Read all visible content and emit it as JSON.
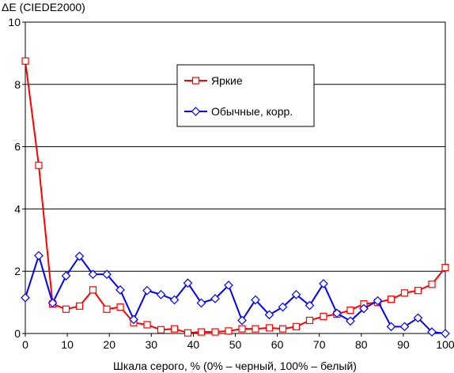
{
  "chart_data": {
    "type": "line",
    "ylabel": "ΔE (CIEDE2000)",
    "xlabel": "Шкала серого, % (0% – черный, 100% – белый)",
    "xlim": [
      0,
      100
    ],
    "ylim": [
      0,
      10
    ],
    "xticks": [
      0,
      10,
      20,
      30,
      40,
      50,
      60,
      70,
      80,
      90,
      100
    ],
    "yticks": [
      0,
      2,
      4,
      6,
      8,
      10
    ],
    "grid": "horizontal",
    "legend_position": "top-center-right",
    "x": [
      0,
      3.2,
      6.5,
      9.7,
      12.9,
      16.1,
      19.4,
      22.6,
      25.8,
      29.0,
      32.3,
      35.5,
      38.7,
      41.9,
      45.2,
      48.4,
      51.6,
      54.8,
      58.1,
      61.3,
      64.5,
      67.7,
      71.0,
      74.2,
      77.4,
      80.6,
      83.9,
      87.1,
      90.3,
      93.5,
      96.8,
      100
    ],
    "series": [
      {
        "name": "Яркие",
        "color": "#ff0000",
        "marker": "square",
        "values": [
          8.75,
          5.4,
          0.95,
          0.78,
          0.88,
          1.4,
          0.78,
          0.85,
          0.35,
          0.28,
          0.12,
          0.15,
          0.02,
          0.05,
          0.05,
          0.08,
          0.15,
          0.15,
          0.18,
          0.15,
          0.22,
          0.42,
          0.55,
          0.62,
          0.75,
          0.95,
          1.0,
          1.1,
          1.3,
          1.38,
          1.58,
          2.12
        ]
      },
      {
        "name": "Обычные, корр.",
        "color": "#0000ff",
        "marker": "diamond",
        "values": [
          1.15,
          2.5,
          0.98,
          1.85,
          2.48,
          1.9,
          1.9,
          1.4,
          0.45,
          1.38,
          1.25,
          1.08,
          1.62,
          0.98,
          1.12,
          1.55,
          0.42,
          1.08,
          0.6,
          0.85,
          1.25,
          0.9,
          1.6,
          0.65,
          0.4,
          0.8,
          1.05,
          0.22,
          0.22,
          0.5,
          0.05,
          0.0
        ]
      }
    ]
  }
}
